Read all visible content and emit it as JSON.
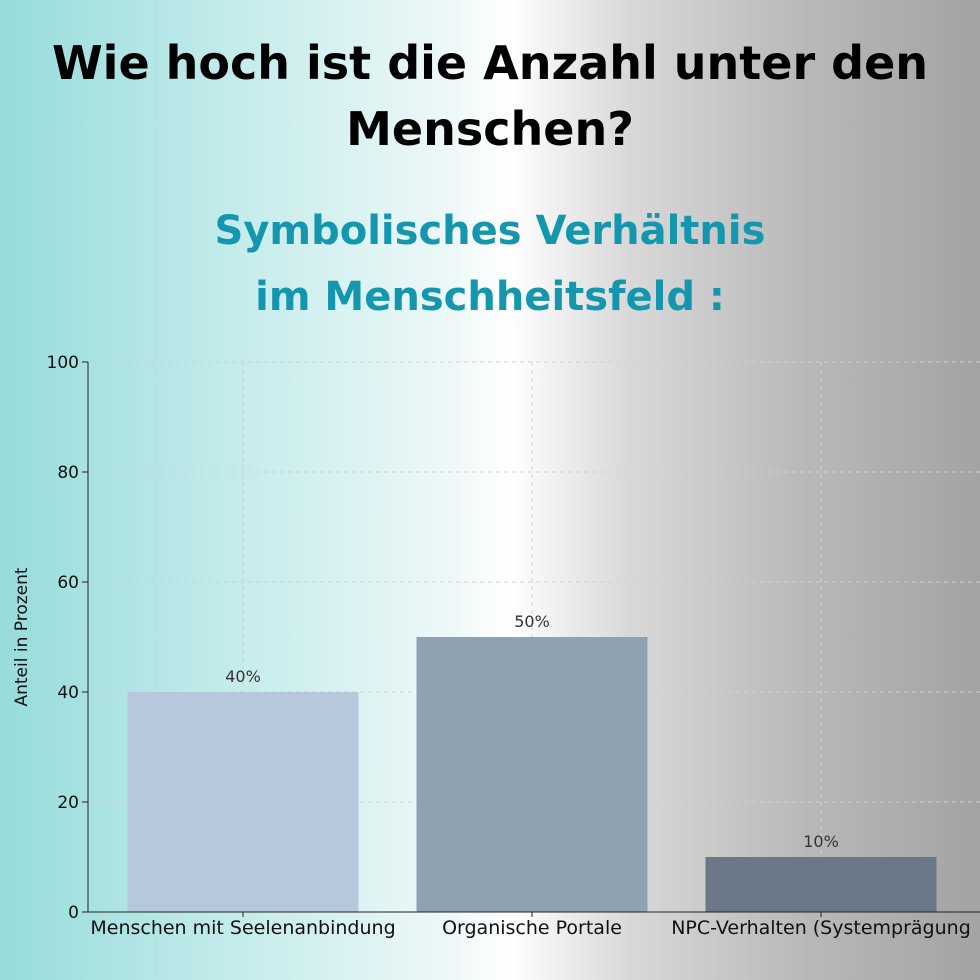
{
  "header": {
    "title_line1": "Wie hoch ist die Anzahl unter den",
    "title_line2": "Menschen?",
    "subtitle_line1": "Symbolisches Verhältnis",
    "subtitle_line2": "im Menschheitsfeld :"
  },
  "chart_data": {
    "type": "bar",
    "title": "",
    "xlabel": "",
    "ylabel": "Anteil in Prozent",
    "ylim": [
      0,
      100
    ],
    "yticks": [
      0,
      20,
      40,
      60,
      80,
      100
    ],
    "categories": [
      "Menschen mit Seelenanbindung",
      "Organische Portale",
      "NPC-Verhalten (Systemprägung"
    ],
    "values": [
      40,
      50,
      10
    ],
    "data_labels": [
      "40%",
      "50%",
      "10%"
    ],
    "bar_colors": [
      "#b7c7dc",
      "#8fa2b1",
      "#6b7888"
    ],
    "grid": true
  }
}
